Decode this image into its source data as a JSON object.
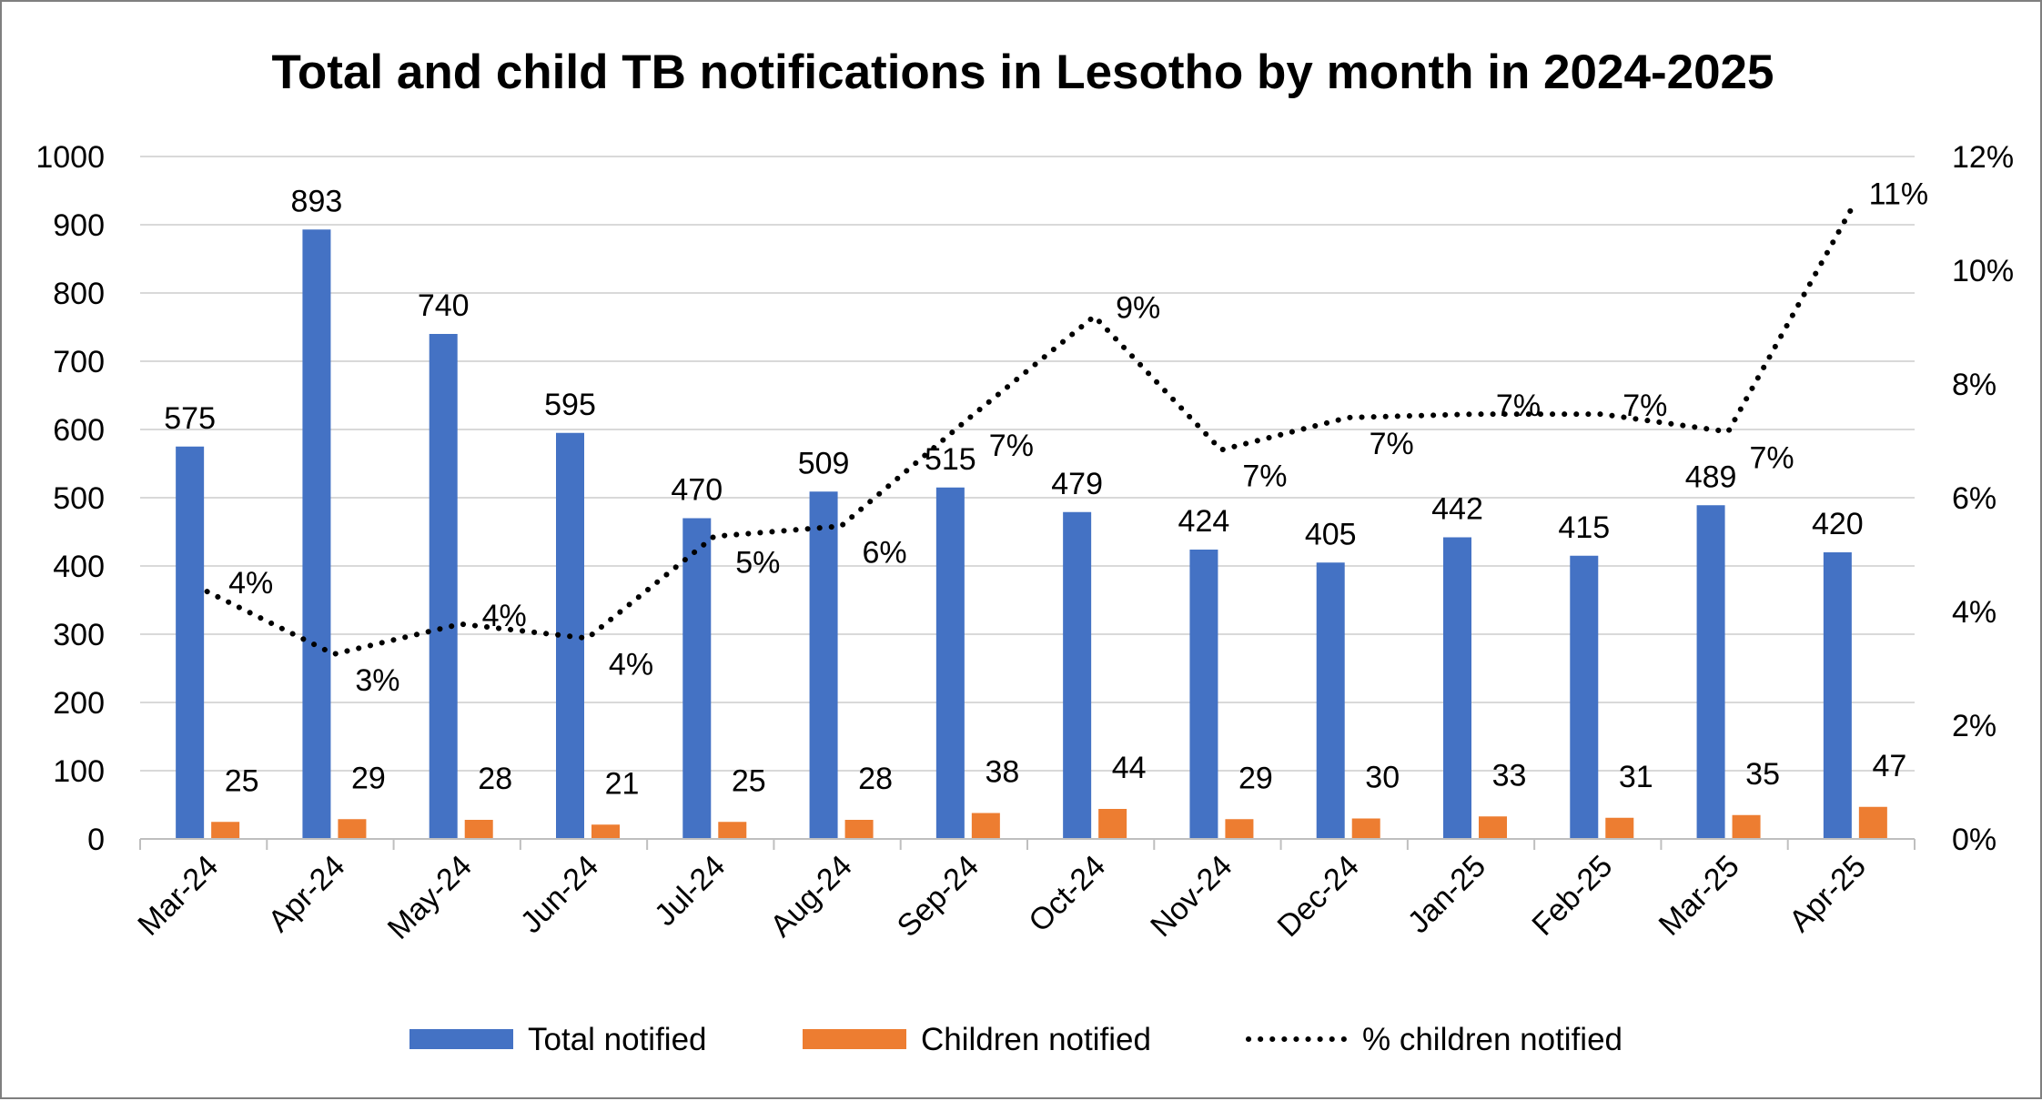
{
  "chart_data": {
    "type": "bar",
    "title": "Total and child TB notifications in Lesotho by month in 2024-2025",
    "categories": [
      "Mar-24",
      "Apr-24",
      "May-24",
      "Jun-24",
      "Jul-24",
      "Aug-24",
      "Sep-24",
      "Oct-24",
      "Nov-24",
      "Dec-24",
      "Jan-25",
      "Feb-25",
      "Mar-25",
      "Apr-25"
    ],
    "y_left": {
      "min": 0,
      "max": 1000,
      "step": 100,
      "ticks": [
        "0",
        "100",
        "200",
        "300",
        "400",
        "500",
        "600",
        "700",
        "800",
        "900",
        "1000"
      ]
    },
    "y_right": {
      "min": 0,
      "max": 12,
      "step": 2,
      "ticks": [
        "0%",
        "2%",
        "4%",
        "6%",
        "8%",
        "10%",
        "12%"
      ]
    },
    "grid": true,
    "legend_position": "bottom",
    "series": [
      {
        "name": "Total notified",
        "kind": "bar",
        "axis": "left",
        "color": "#4472C4",
        "values": [
          575,
          893,
          740,
          595,
          470,
          509,
          515,
          479,
          424,
          405,
          442,
          415,
          489,
          420
        ],
        "labels": [
          "575",
          "893",
          "740",
          "595",
          "470",
          "509",
          "515",
          "479",
          "424",
          "405",
          "442",
          "415",
          "489",
          "420"
        ]
      },
      {
        "name": "Children notified",
        "kind": "bar",
        "axis": "left",
        "color": "#ED7D31",
        "values": [
          25,
          29,
          28,
          21,
          25,
          28,
          38,
          44,
          29,
          30,
          33,
          31,
          35,
          47
        ],
        "labels": [
          "25",
          "29",
          "28",
          "21",
          "25",
          "28",
          "38",
          "44",
          "29",
          "30",
          "33",
          "31",
          "35",
          "47"
        ]
      },
      {
        "name": "% children notified",
        "kind": "line",
        "axis": "right",
        "color": "#000000",
        "style": "dotted",
        "values": [
          4.35,
          3.25,
          3.78,
          3.53,
          5.32,
          5.5,
          7.38,
          9.19,
          6.84,
          7.41,
          7.47,
          7.47,
          7.16,
          11.19
        ],
        "labels": [
          "4%",
          "3%",
          "4%",
          "4%",
          "5%",
          "6%",
          "7%",
          "9%",
          "7%",
          "7%",
          "7%",
          "7%",
          "7%",
          "11%"
        ]
      }
    ]
  }
}
